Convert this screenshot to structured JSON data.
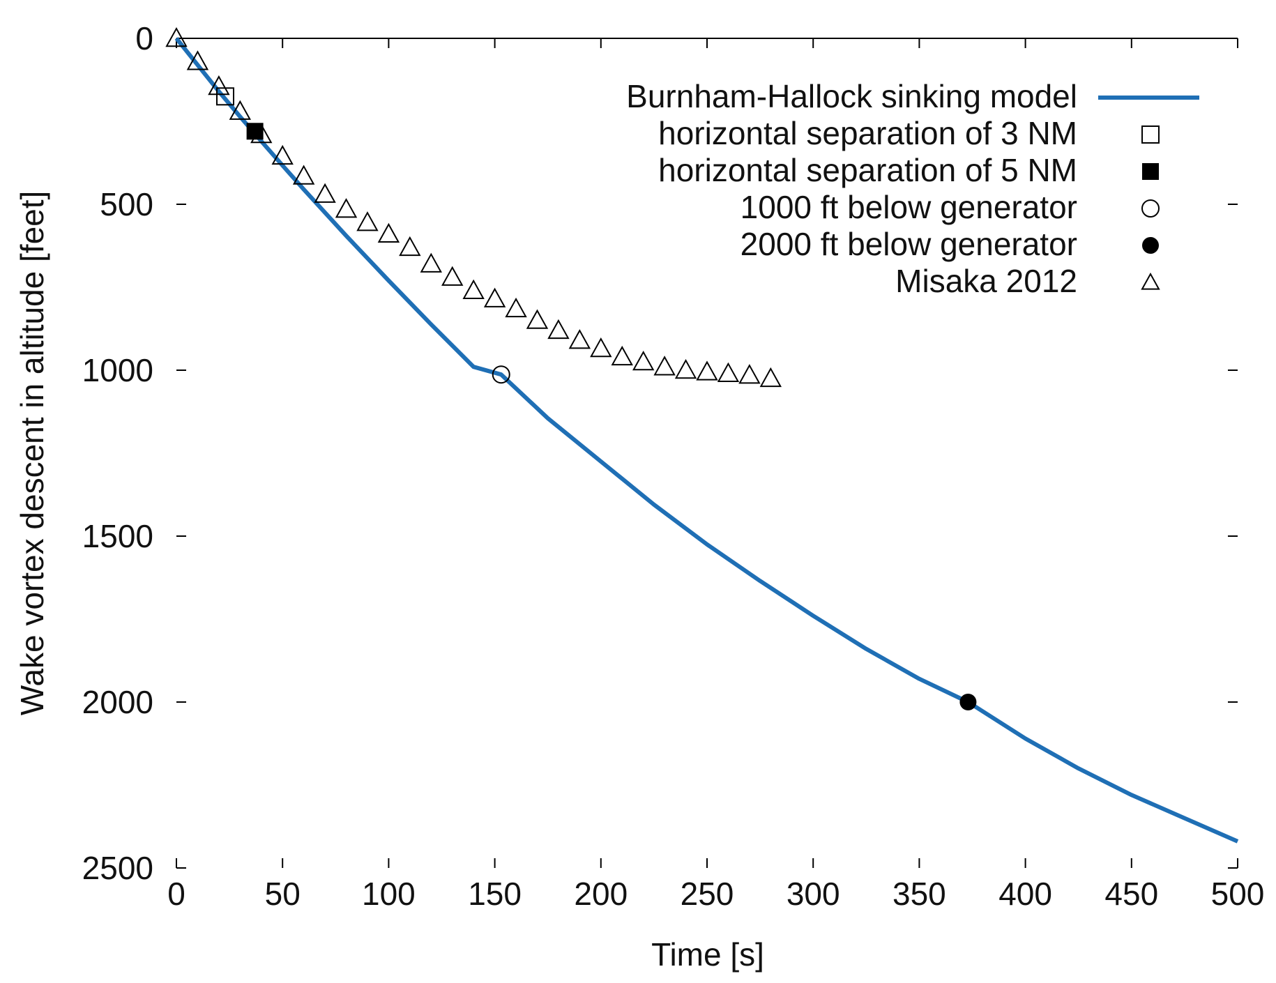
{
  "chart_data": {
    "type": "line",
    "title": "",
    "xlabel": "Time  [s]",
    "ylabel": "Wake vortex descent in altitude  [feet]",
    "xlim": [
      0,
      500
    ],
    "ylim": [
      0,
      2500
    ],
    "y_inverted": true,
    "x_ticks": [
      0,
      50,
      100,
      150,
      200,
      250,
      300,
      350,
      400,
      450,
      500
    ],
    "y_ticks": [
      0,
      500,
      1000,
      1500,
      2000,
      2500
    ],
    "grid": false,
    "legend_position": "top-right",
    "colors": {
      "model_line": "#1f6fb5",
      "markers": "#000000",
      "axis": "#000000"
    },
    "series": [
      {
        "name": "Burnham-Hallock sinking model",
        "style": "line",
        "x": [
          0,
          10,
          20,
          30,
          40,
          50,
          60,
          80,
          100,
          120,
          140,
          153,
          175,
          200,
          225,
          250,
          275,
          300,
          325,
          350,
          373,
          400,
          425,
          450,
          475,
          500
        ],
        "y": [
          0,
          80,
          160,
          236,
          310,
          383,
          455,
          595,
          730,
          862,
          990,
          1013,
          1145,
          1275,
          1405,
          1525,
          1635,
          1740,
          1840,
          1930,
          2000,
          2110,
          2200,
          2280,
          2350,
          2420
        ]
      },
      {
        "name": "horizontal separation of 3 NM",
        "style": "open-square",
        "x": [
          23
        ],
        "y": [
          175
        ]
      },
      {
        "name": "horizontal separation of 5 NM",
        "style": "filled-square",
        "x": [
          37
        ],
        "y": [
          280
        ]
      },
      {
        "name": "1000 ft below generator",
        "style": "open-circle",
        "x": [
          153
        ],
        "y": [
          1013
        ]
      },
      {
        "name": "2000 ft below generator",
        "style": "filled-circle",
        "x": [
          373
        ],
        "y": [
          2000
        ]
      },
      {
        "name": "Misaka 2012",
        "style": "open-triangle",
        "x": [
          0,
          10,
          20,
          30,
          40,
          50,
          60,
          70,
          80,
          90,
          100,
          110,
          120,
          130,
          140,
          150,
          160,
          170,
          180,
          190,
          200,
          210,
          220,
          230,
          240,
          250,
          260,
          270,
          280
        ],
        "y": [
          0,
          70,
          145,
          220,
          290,
          355,
          415,
          470,
          515,
          555,
          590,
          630,
          680,
          720,
          760,
          785,
          815,
          850,
          880,
          910,
          935,
          960,
          975,
          990,
          1000,
          1005,
          1010,
          1015,
          1025
        ]
      }
    ]
  }
}
